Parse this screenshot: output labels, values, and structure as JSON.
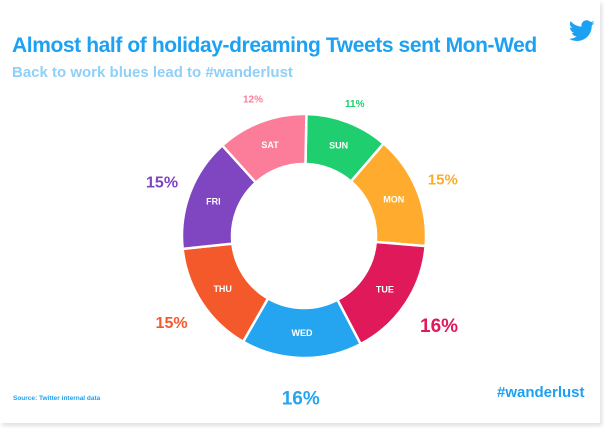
{
  "header": {
    "title": "Almost half of holiday-dreaming Tweets sent Mon-Wed",
    "subtitle": "Back to work blues lead to #wanderlust"
  },
  "footer": {
    "source": "Source: Twitter internal data",
    "hashtag": "#wanderlust"
  },
  "icons": {
    "logo": "twitter-bird-icon"
  },
  "colors": {
    "title": "#1da1f2",
    "subtitle": "#8ed0f7"
  },
  "chart_data": {
    "type": "pie",
    "donut": true,
    "categories": [
      "SUN",
      "MON",
      "TUE",
      "WED",
      "THU",
      "FRI",
      "SAT"
    ],
    "values": [
      11,
      15,
      16,
      16,
      15,
      15,
      12
    ],
    "value_labels": [
      "11%",
      "15%",
      "16%",
      "16%",
      "15%",
      "15%",
      "12%"
    ],
    "colors": [
      "#1fcf6f",
      "#ffab2e",
      "#e0195a",
      "#25a4f0",
      "#f4592c",
      "#8045c1",
      "#fb7d99"
    ],
    "legend": "none"
  }
}
